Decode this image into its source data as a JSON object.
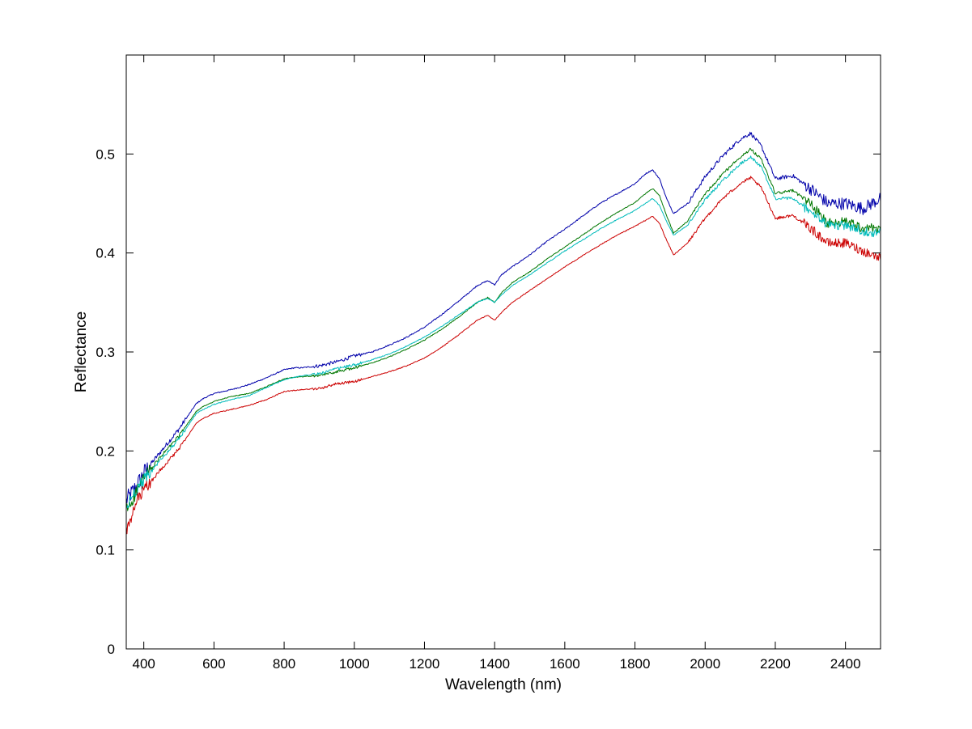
{
  "chart_data": {
    "type": "line",
    "title": "",
    "xlabel": "Wavelength (nm)",
    "ylabel": "Reflectance",
    "xlim": [
      350,
      2500
    ],
    "ylim": [
      0,
      0.6
    ],
    "grid": false,
    "box": true,
    "x_ticks": [
      400,
      600,
      800,
      1000,
      1200,
      1400,
      1600,
      1800,
      2000,
      2200,
      2400
    ],
    "x_tick_labels": [
      "400",
      "600",
      "800",
      "1000",
      "1200",
      "1400",
      "1600",
      "1800",
      "2000",
      "2200",
      "2400"
    ],
    "y_ticks": [
      0,
      0.1,
      0.2,
      0.3,
      0.4,
      0.5
    ],
    "y_tick_labels": [
      "0",
      "0.1",
      "0.2",
      "0.3",
      "0.4",
      "0.5"
    ],
    "series": [
      {
        "color": "#0000aa",
        "noise": 0.008,
        "points": [
          [
            350,
            0.15
          ],
          [
            360,
            0.155
          ],
          [
            380,
            0.165
          ],
          [
            400,
            0.178
          ],
          [
            450,
            0.2
          ],
          [
            500,
            0.222
          ],
          [
            550,
            0.248
          ],
          [
            570,
            0.253
          ],
          [
            600,
            0.258
          ],
          [
            650,
            0.262
          ],
          [
            700,
            0.267
          ],
          [
            750,
            0.274
          ],
          [
            800,
            0.282
          ],
          [
            830,
            0.284
          ],
          [
            850,
            0.284
          ],
          [
            900,
            0.286
          ],
          [
            950,
            0.29
          ],
          [
            1000,
            0.296
          ],
          [
            1050,
            0.3
          ],
          [
            1100,
            0.307
          ],
          [
            1150,
            0.315
          ],
          [
            1200,
            0.325
          ],
          [
            1250,
            0.338
          ],
          [
            1300,
            0.352
          ],
          [
            1350,
            0.367
          ],
          [
            1380,
            0.372
          ],
          [
            1400,
            0.368
          ],
          [
            1420,
            0.378
          ],
          [
            1450,
            0.386
          ],
          [
            1500,
            0.398
          ],
          [
            1550,
            0.412
          ],
          [
            1600,
            0.424
          ],
          [
            1650,
            0.437
          ],
          [
            1700,
            0.45
          ],
          [
            1750,
            0.46
          ],
          [
            1800,
            0.47
          ],
          [
            1830,
            0.48
          ],
          [
            1850,
            0.484
          ],
          [
            1870,
            0.475
          ],
          [
            1890,
            0.455
          ],
          [
            1910,
            0.44
          ],
          [
            1950,
            0.45
          ],
          [
            2000,
            0.477
          ],
          [
            2050,
            0.498
          ],
          [
            2100,
            0.515
          ],
          [
            2130,
            0.521
          ],
          [
            2160,
            0.508
          ],
          [
            2200,
            0.475
          ],
          [
            2250,
            0.478
          ],
          [
            2300,
            0.465
          ],
          [
            2350,
            0.45
          ],
          [
            2400,
            0.45
          ],
          [
            2450,
            0.445
          ],
          [
            2500,
            0.455
          ]
        ]
      },
      {
        "color": "#007700",
        "noise": 0.006,
        "points": [
          [
            350,
            0.14
          ],
          [
            360,
            0.145
          ],
          [
            380,
            0.16
          ],
          [
            400,
            0.172
          ],
          [
            450,
            0.195
          ],
          [
            500,
            0.215
          ],
          [
            550,
            0.24
          ],
          [
            570,
            0.245
          ],
          [
            600,
            0.25
          ],
          [
            650,
            0.255
          ],
          [
            700,
            0.258
          ],
          [
            750,
            0.265
          ],
          [
            800,
            0.273
          ],
          [
            850,
            0.275
          ],
          [
            900,
            0.276
          ],
          [
            950,
            0.28
          ],
          [
            1000,
            0.284
          ],
          [
            1050,
            0.289
          ],
          [
            1100,
            0.295
          ],
          [
            1150,
            0.303
          ],
          [
            1200,
            0.312
          ],
          [
            1250,
            0.323
          ],
          [
            1300,
            0.336
          ],
          [
            1350,
            0.35
          ],
          [
            1380,
            0.355
          ],
          [
            1400,
            0.35
          ],
          [
            1420,
            0.36
          ],
          [
            1450,
            0.37
          ],
          [
            1500,
            0.381
          ],
          [
            1550,
            0.394
          ],
          [
            1600,
            0.406
          ],
          [
            1650,
            0.418
          ],
          [
            1700,
            0.43
          ],
          [
            1750,
            0.441
          ],
          [
            1800,
            0.451
          ],
          [
            1830,
            0.46
          ],
          [
            1850,
            0.465
          ],
          [
            1870,
            0.458
          ],
          [
            1890,
            0.438
          ],
          [
            1910,
            0.42
          ],
          [
            1950,
            0.432
          ],
          [
            2000,
            0.46
          ],
          [
            2050,
            0.48
          ],
          [
            2100,
            0.497
          ],
          [
            2130,
            0.505
          ],
          [
            2160,
            0.495
          ],
          [
            2200,
            0.46
          ],
          [
            2250,
            0.463
          ],
          [
            2300,
            0.45
          ],
          [
            2350,
            0.43
          ],
          [
            2400,
            0.432
          ],
          [
            2450,
            0.425
          ],
          [
            2500,
            0.425
          ]
        ]
      },
      {
        "color": "#00bbbb",
        "noise": 0.006,
        "points": [
          [
            350,
            0.14
          ],
          [
            360,
            0.15
          ],
          [
            380,
            0.162
          ],
          [
            400,
            0.17
          ],
          [
            450,
            0.192
          ],
          [
            500,
            0.212
          ],
          [
            550,
            0.238
          ],
          [
            570,
            0.242
          ],
          [
            600,
            0.247
          ],
          [
            650,
            0.252
          ],
          [
            700,
            0.256
          ],
          [
            750,
            0.264
          ],
          [
            800,
            0.272
          ],
          [
            850,
            0.276
          ],
          [
            900,
            0.278
          ],
          [
            950,
            0.283
          ],
          [
            1000,
            0.287
          ],
          [
            1050,
            0.292
          ],
          [
            1100,
            0.298
          ],
          [
            1150,
            0.306
          ],
          [
            1200,
            0.315
          ],
          [
            1250,
            0.326
          ],
          [
            1300,
            0.338
          ],
          [
            1350,
            0.35
          ],
          [
            1380,
            0.354
          ],
          [
            1400,
            0.35
          ],
          [
            1420,
            0.358
          ],
          [
            1450,
            0.367
          ],
          [
            1500,
            0.378
          ],
          [
            1550,
            0.39
          ],
          [
            1600,
            0.402
          ],
          [
            1650,
            0.413
          ],
          [
            1700,
            0.424
          ],
          [
            1750,
            0.434
          ],
          [
            1800,
            0.443
          ],
          [
            1830,
            0.45
          ],
          [
            1850,
            0.455
          ],
          [
            1870,
            0.448
          ],
          [
            1890,
            0.432
          ],
          [
            1910,
            0.418
          ],
          [
            1950,
            0.428
          ],
          [
            2000,
            0.454
          ],
          [
            2050,
            0.473
          ],
          [
            2100,
            0.49
          ],
          [
            2130,
            0.497
          ],
          [
            2160,
            0.487
          ],
          [
            2200,
            0.455
          ],
          [
            2250,
            0.455
          ],
          [
            2300,
            0.442
          ],
          [
            2350,
            0.428
          ],
          [
            2400,
            0.428
          ],
          [
            2450,
            0.422
          ],
          [
            2500,
            0.42
          ]
        ]
      },
      {
        "color": "#cc0000",
        "noise": 0.006,
        "points": [
          [
            350,
            0.12
          ],
          [
            360,
            0.125
          ],
          [
            380,
            0.15
          ],
          [
            400,
            0.16
          ],
          [
            450,
            0.182
          ],
          [
            500,
            0.202
          ],
          [
            550,
            0.228
          ],
          [
            570,
            0.233
          ],
          [
            600,
            0.238
          ],
          [
            650,
            0.242
          ],
          [
            700,
            0.246
          ],
          [
            750,
            0.252
          ],
          [
            800,
            0.26
          ],
          [
            850,
            0.262
          ],
          [
            900,
            0.263
          ],
          [
            950,
            0.268
          ],
          [
            1000,
            0.27
          ],
          [
            1050,
            0.275
          ],
          [
            1100,
            0.28
          ],
          [
            1150,
            0.286
          ],
          [
            1200,
            0.294
          ],
          [
            1250,
            0.305
          ],
          [
            1300,
            0.318
          ],
          [
            1350,
            0.332
          ],
          [
            1380,
            0.337
          ],
          [
            1400,
            0.332
          ],
          [
            1420,
            0.34
          ],
          [
            1450,
            0.35
          ],
          [
            1500,
            0.362
          ],
          [
            1550,
            0.374
          ],
          [
            1600,
            0.386
          ],
          [
            1650,
            0.397
          ],
          [
            1700,
            0.408
          ],
          [
            1750,
            0.418
          ],
          [
            1800,
            0.427
          ],
          [
            1830,
            0.433
          ],
          [
            1850,
            0.437
          ],
          [
            1870,
            0.43
          ],
          [
            1890,
            0.413
          ],
          [
            1910,
            0.398
          ],
          [
            1950,
            0.41
          ],
          [
            2000,
            0.435
          ],
          [
            2050,
            0.455
          ],
          [
            2100,
            0.47
          ],
          [
            2130,
            0.476
          ],
          [
            2160,
            0.466
          ],
          [
            2200,
            0.435
          ],
          [
            2250,
            0.438
          ],
          [
            2300,
            0.425
          ],
          [
            2350,
            0.41
          ],
          [
            2400,
            0.41
          ],
          [
            2450,
            0.402
          ],
          [
            2500,
            0.395
          ]
        ]
      }
    ]
  }
}
